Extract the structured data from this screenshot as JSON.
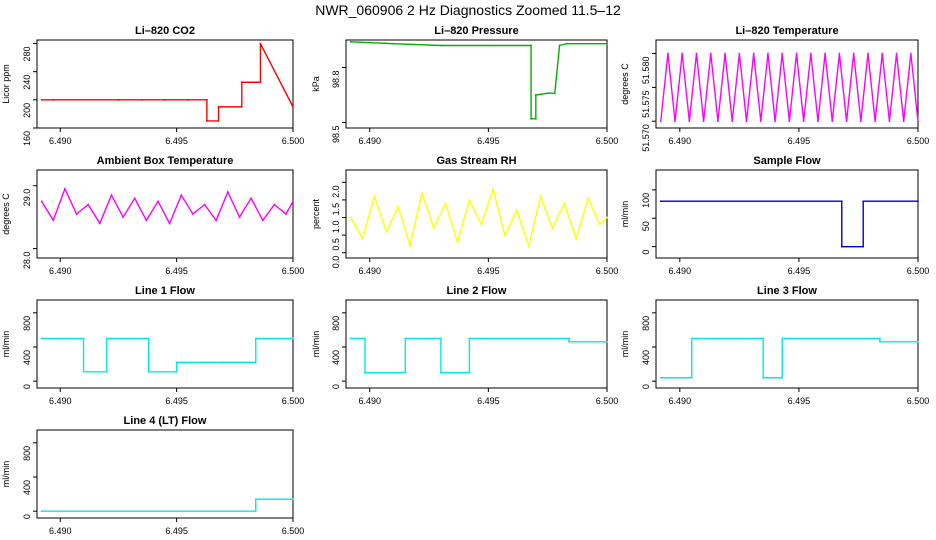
{
  "page": {
    "title": "NWR_060906  2 Hz Diagnostics Zoomed 11.5–12"
  },
  "chart_data": [
    {
      "type": "line",
      "title": "Li–820 CO2",
      "ylabel": "Licor ppm",
      "color": "#ff0000",
      "xlim": [
        6.489,
        6.5
      ],
      "ylim": [
        160,
        285
      ],
      "x_ticks": [
        "6.490",
        "6.495",
        "6.500"
      ],
      "x_ticks_visible": [
        "6.490",
        "6.495",
        "6.490",
        "6.495",
        "6.500"
      ],
      "xtick_labels": [
        "6.490",
        "6.495",
        "6.490",
        "6.495",
        "6.500"
      ],
      "y_ticks": [
        "160",
        "200",
        "240",
        "280"
      ],
      "series": [
        {
          "x": [
            6.4892,
            6.4897,
            6.4897,
            6.4925,
            6.4925,
            6.4935,
            6.4935,
            6.4945,
            6.4945,
            6.4955,
            6.4955,
            6.4963,
            6.4963,
            6.4968,
            6.4968,
            6.4978,
            6.4978,
            6.4986,
            6.4986,
            6.5
          ],
          "y": [
            200,
            200,
            200,
            200,
            200,
            200,
            200,
            200,
            200,
            200,
            200,
            200,
            170,
            170,
            190,
            190,
            225,
            225,
            280,
            190
          ]
        }
      ]
    }
  ]
}
